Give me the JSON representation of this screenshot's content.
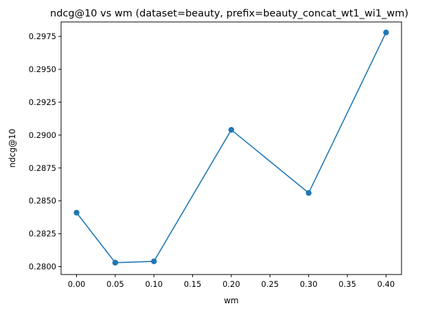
{
  "chart_data": {
    "type": "line",
    "title": "ndcg@10 vs wm (dataset=beauty, prefix=beauty_concat_wt1_wi1_wm)",
    "xlabel": "wm",
    "ylabel": "ndcg@10",
    "xlim": [
      -0.02,
      0.42
    ],
    "ylim": [
      0.2794,
      0.2986
    ],
    "x_ticks": [
      0.0,
      0.05,
      0.1,
      0.15,
      0.2,
      0.25,
      0.3,
      0.35,
      0.4
    ],
    "x_tick_labels": [
      "0.00",
      "0.05",
      "0.10",
      "0.15",
      "0.20",
      "0.25",
      "0.30",
      "0.35",
      "0.40"
    ],
    "y_ticks": [
      0.28,
      0.2825,
      0.285,
      0.2875,
      0.29,
      0.2925,
      0.295,
      0.2975
    ],
    "y_tick_labels": [
      "0.2800",
      "0.2825",
      "0.2850",
      "0.2875",
      "0.2900",
      "0.2925",
      "0.2950",
      "0.2975"
    ],
    "grid": false,
    "legend": "none",
    "series": [
      {
        "color": "#1f77b4",
        "marker": "circle",
        "x": [
          0.0,
          0.05,
          0.1,
          0.2,
          0.3,
          0.4
        ],
        "y": [
          0.2841,
          0.2803,
          0.2804,
          0.2904,
          0.2856,
          0.2978
        ]
      }
    ]
  }
}
